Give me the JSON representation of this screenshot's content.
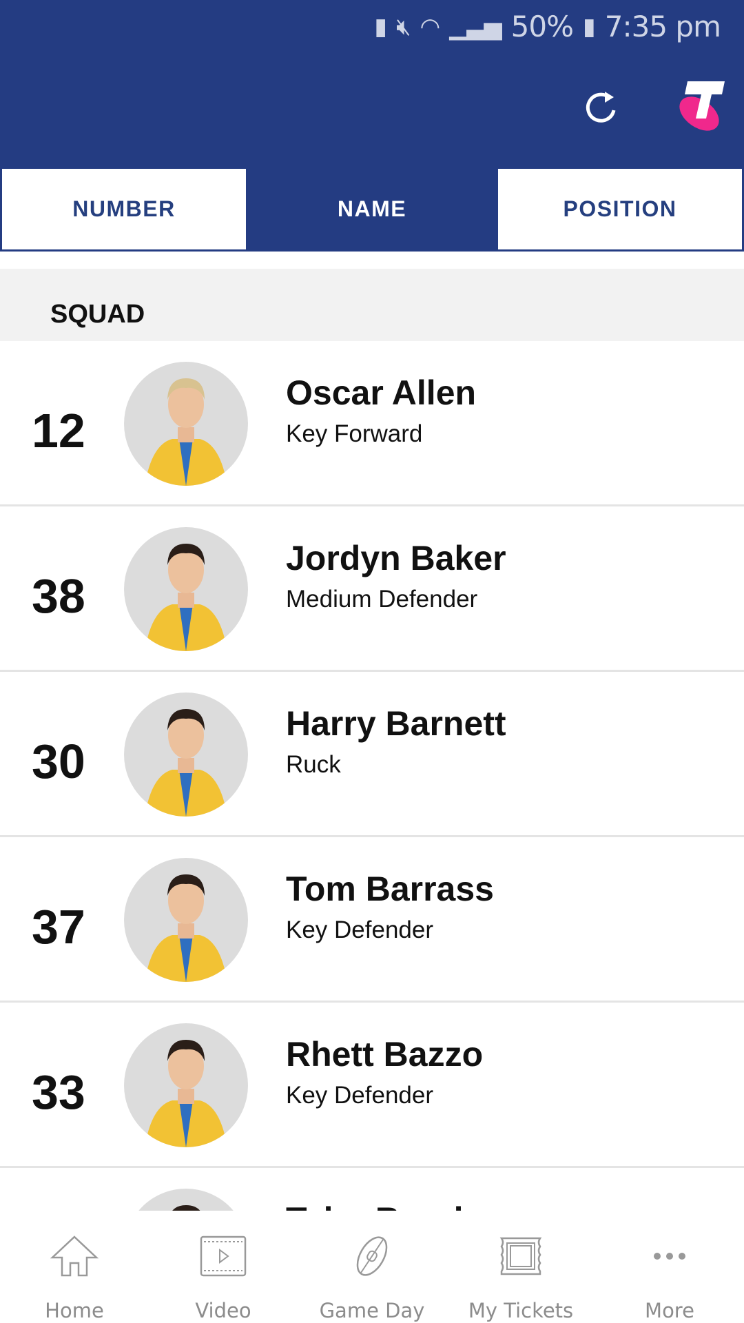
{
  "status_bar": {
    "battery_percent": "50%",
    "time": "7:35 pm"
  },
  "colors": {
    "brand_blue": "#243c82",
    "logo_pink": "#f0288c"
  },
  "tabs": [
    {
      "label": "NUMBER",
      "active": false
    },
    {
      "label": "NAME",
      "active": true
    },
    {
      "label": "POSITION",
      "active": false
    }
  ],
  "section_title": "SQUAD",
  "players": [
    {
      "number": "12",
      "name": "Oscar Allen",
      "position": "Key Forward"
    },
    {
      "number": "38",
      "name": "Jordyn Baker",
      "position": "Medium Defender"
    },
    {
      "number": "30",
      "name": "Harry Barnett",
      "position": "Ruck"
    },
    {
      "number": "37",
      "name": "Tom Barrass",
      "position": "Key Defender"
    },
    {
      "number": "33",
      "name": "Rhett Bazzo",
      "position": "Key Defender"
    },
    {
      "number": "",
      "name": "Tyler Brockman",
      "position": ""
    }
  ],
  "nav": [
    {
      "label": "Home",
      "icon": "home-icon"
    },
    {
      "label": "Video",
      "icon": "video-icon"
    },
    {
      "label": "Game Day",
      "icon": "football-icon"
    },
    {
      "label": "My Tickets",
      "icon": "ticket-icon"
    },
    {
      "label": "More",
      "icon": "more-icon"
    }
  ]
}
